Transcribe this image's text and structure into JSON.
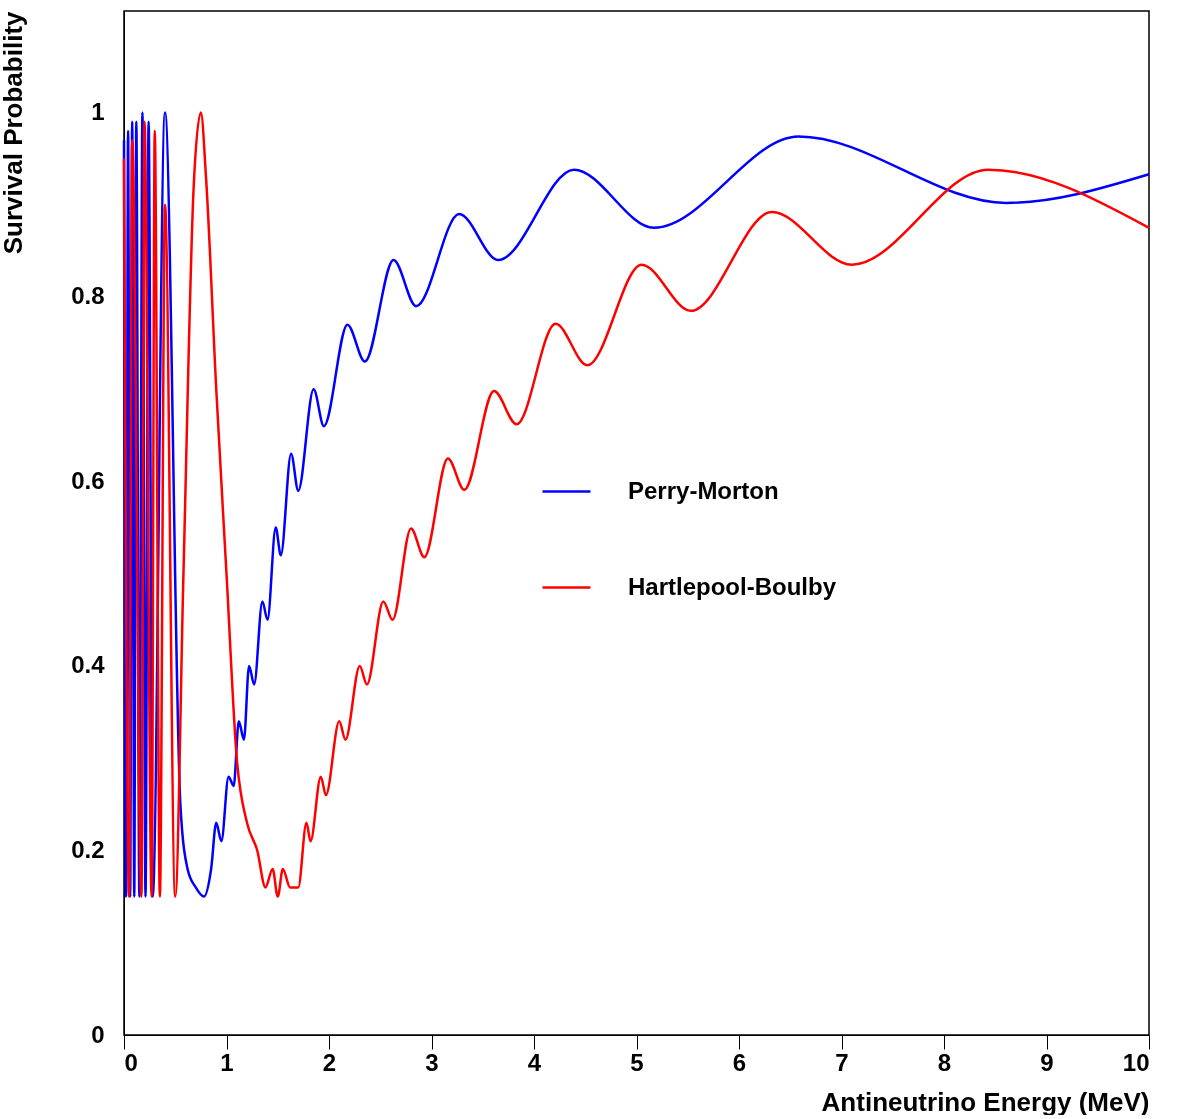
{
  "chart_data": {
    "type": "line",
    "xlabel": "Antineutrino Energy (MeV)",
    "ylabel": "Survival Probability",
    "xlim": [
      0,
      10
    ],
    "xticks": [
      0,
      1,
      2,
      3,
      4,
      5,
      6,
      7,
      8,
      9,
      10
    ],
    "ylim": [
      0,
      1.11
    ],
    "yticks": [
      0,
      0.2,
      0.4,
      0.6,
      0.8,
      1
    ],
    "grid": false,
    "legend": "right",
    "line_style": "solid",
    "marker": "none",
    "series": [
      {
        "name": "Perry-Morton",
        "color": "#0000ff",
        "x": [
          0.0,
          0.02,
          0.04,
          0.06,
          0.08,
          0.1,
          0.12,
          0.15,
          0.18,
          0.21,
          0.24,
          0.28,
          0.4,
          0.55,
          0.62,
          0.7,
          0.78,
          0.85,
          0.9,
          0.95,
          1.02,
          1.07,
          1.12,
          1.17,
          1.22,
          1.27,
          1.35,
          1.4,
          1.48,
          1.53,
          1.63,
          1.7,
          1.85,
          1.95,
          2.18,
          2.35,
          2.63,
          2.85,
          3.27,
          3.65,
          4.39,
          5.17,
          6.58,
          8.61,
          10
        ],
        "values": [
          0.97,
          0.15,
          0.98,
          0.15,
          0.99,
          0.15,
          0.99,
          0.15,
          1.0,
          0.15,
          0.99,
          0.15,
          1.0,
          0.25,
          0.18,
          0.16,
          0.15,
          0.18,
          0.23,
          0.21,
          0.28,
          0.27,
          0.34,
          0.32,
          0.4,
          0.38,
          0.47,
          0.45,
          0.55,
          0.52,
          0.63,
          0.59,
          0.7,
          0.66,
          0.77,
          0.73,
          0.84,
          0.79,
          0.89,
          0.84,
          0.938,
          0.875,
          0.974,
          0.902,
          0.933
        ]
      },
      {
        "name": "Hartlepool-Boulby",
        "color": "#ff0000",
        "x": [
          0.0,
          0.05,
          0.08,
          0.17,
          0.2,
          0.27,
          0.3,
          0.35,
          0.4,
          0.5,
          0.58,
          0.68,
          0.75,
          0.8,
          0.9,
          1.0,
          1.1,
          1.2,
          1.3,
          1.38,
          1.45,
          1.5,
          1.55,
          1.62,
          1.7,
          1.78,
          1.82,
          1.92,
          1.97,
          2.1,
          2.16,
          2.3,
          2.37,
          2.53,
          2.62,
          2.8,
          2.93,
          3.16,
          3.32,
          3.61,
          3.83,
          4.21,
          4.52,
          5.05,
          5.53,
          6.32,
          7.1,
          8.43,
          10
        ],
        "values": [
          0.95,
          0.15,
          0.97,
          0.15,
          0.99,
          0.15,
          0.98,
          0.15,
          0.9,
          0.15,
          0.5,
          0.92,
          1.0,
          0.93,
          0.7,
          0.5,
          0.3,
          0.23,
          0.2,
          0.16,
          0.18,
          0.15,
          0.18,
          0.16,
          0.16,
          0.23,
          0.21,
          0.28,
          0.26,
          0.34,
          0.32,
          0.4,
          0.38,
          0.47,
          0.45,
          0.549,
          0.518,
          0.625,
          0.591,
          0.698,
          0.662,
          0.771,
          0.726,
          0.835,
          0.785,
          0.892,
          0.835,
          0.938,
          0.875
        ]
      }
    ]
  }
}
